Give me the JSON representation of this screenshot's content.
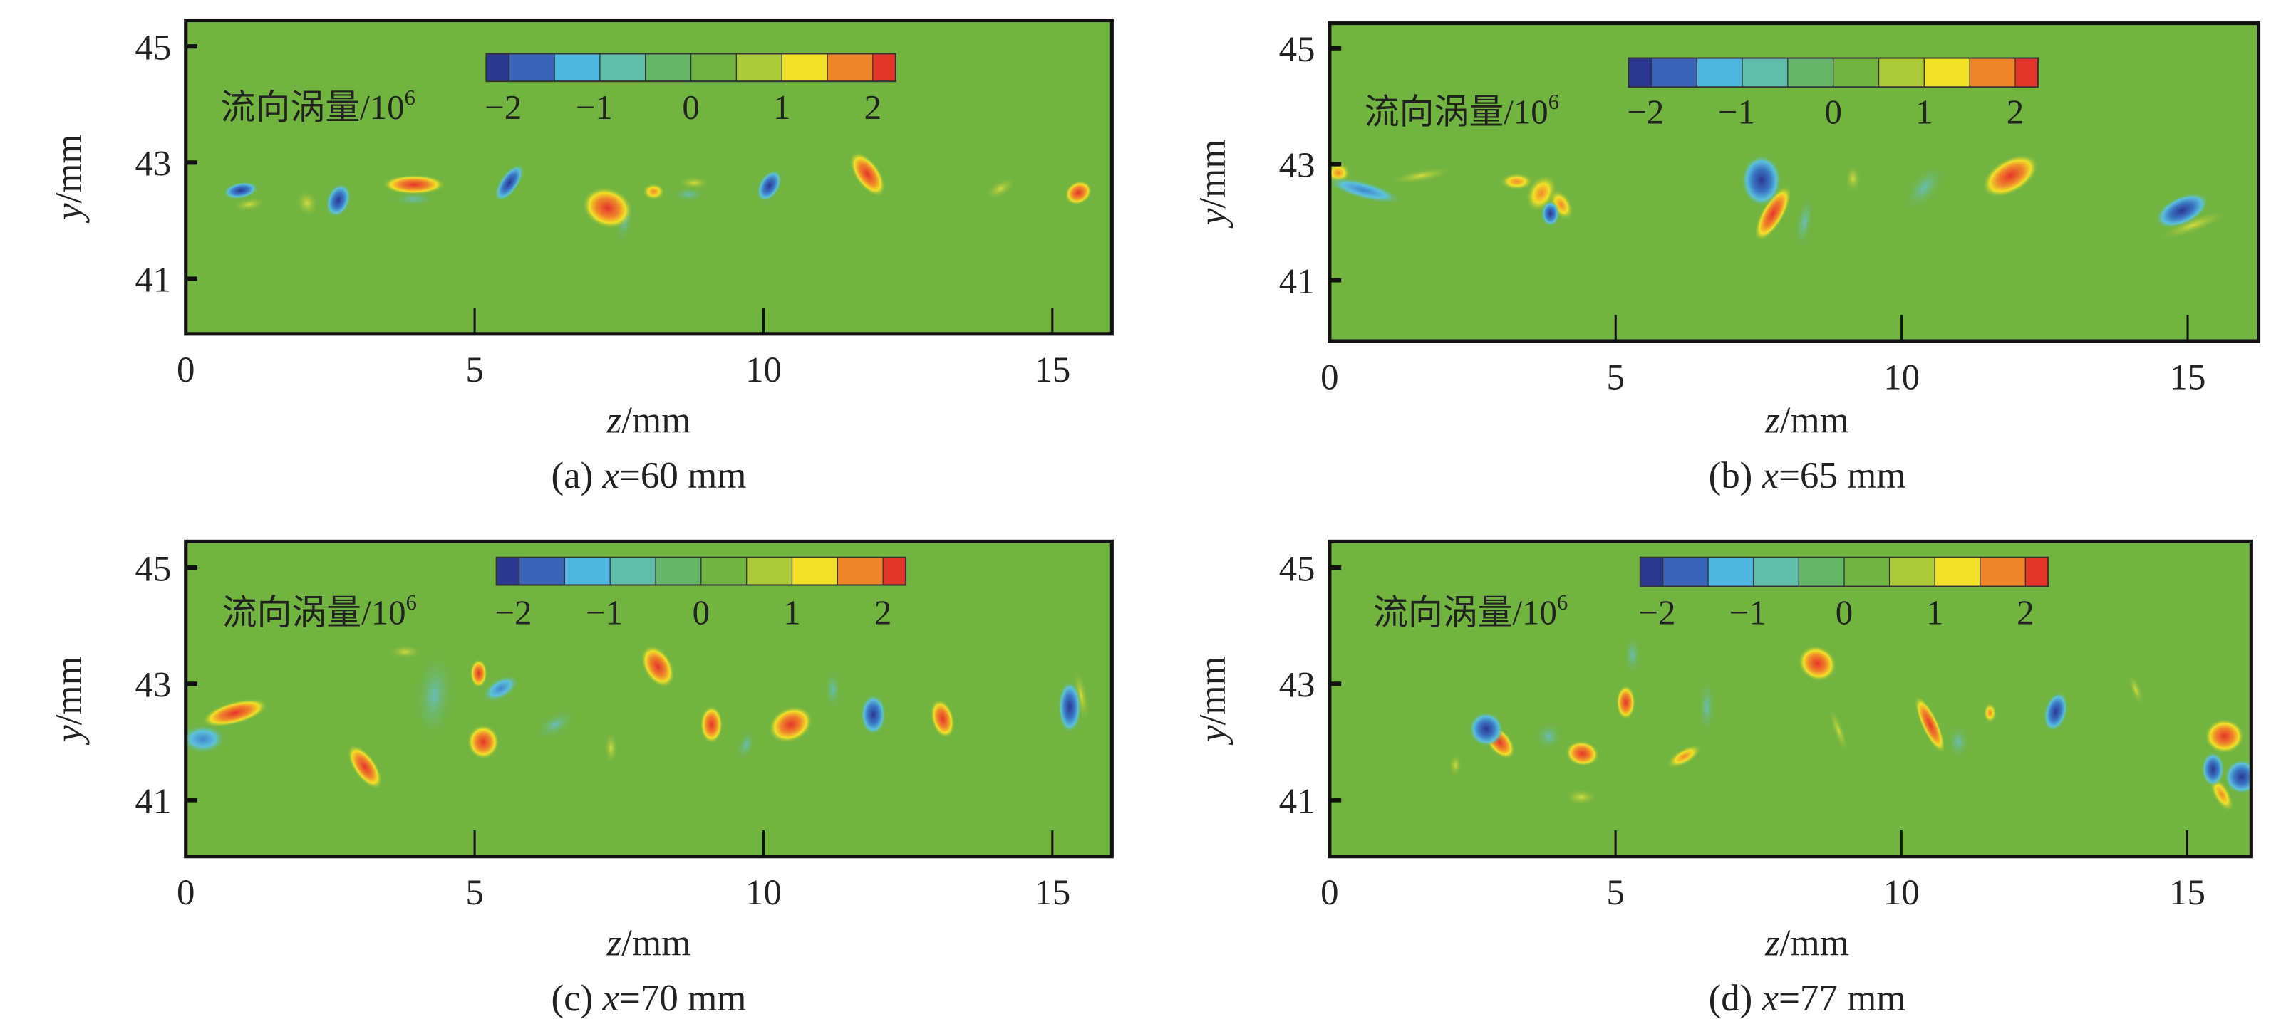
{
  "colorbar": {
    "label": "流向涡量/10",
    "label_exp": "6",
    "ticks": [
      -2,
      -1,
      0,
      1,
      2
    ],
    "tick_labels": [
      "−2",
      "−1",
      "0",
      "1",
      "2"
    ],
    "range": [
      -2.25,
      2.25
    ],
    "levels": [
      -2.25,
      -2,
      -1.5,
      -1,
      -0.5,
      0,
      0.5,
      1,
      1.5,
      2,
      2.25
    ],
    "colors": [
      "#2c3790",
      "#3a64b8",
      "#4fb6e0",
      "#5fbdaa",
      "#66b66a",
      "#72b443",
      "#acc93a",
      "#f2e128",
      "#ef872a",
      "#e4352b"
    ]
  },
  "colors": {
    "background": "#71b440",
    "positive": "#e4352b",
    "negative": "#2c3790"
  },
  "chart_data": [
    {
      "type": "heatmap",
      "title": "(a) x=60 mm",
      "caption_prefix": "(a) ",
      "caption_var": "x",
      "caption_rest": "=60 mm",
      "xlabel_var": "z",
      "xlabel_unit": "/mm",
      "ylabel_var": "y",
      "ylabel_unit": "/mm",
      "xticks": [
        0,
        5,
        10,
        15
      ],
      "yticks": [
        41,
        43,
        45
      ],
      "xlim": [
        0,
        16.03
      ],
      "ylim": [
        40.05,
        45.45
      ],
      "vortices_z_y_value_rz_ry_angle": [
        [
          0.95,
          42.52,
          -1.8,
          0.3,
          0.14,
          -10
        ],
        [
          1.1,
          42.28,
          0.8,
          0.3,
          0.12,
          -10
        ],
        [
          2.1,
          42.3,
          0.8,
          0.25,
          0.2,
          70
        ],
        [
          2.64,
          42.35,
          -2.0,
          0.2,
          0.3,
          20
        ],
        [
          3.95,
          42.62,
          1.9,
          0.55,
          0.17,
          0
        ],
        [
          3.95,
          42.37,
          -0.8,
          0.4,
          0.12,
          0
        ],
        [
          5.6,
          42.65,
          -1.8,
          0.16,
          0.38,
          35
        ],
        [
          7.3,
          42.22,
          2.1,
          0.45,
          0.35,
          20
        ],
        [
          7.6,
          42.0,
          -0.8,
          0.15,
          0.4,
          10
        ],
        [
          8.1,
          42.5,
          1.5,
          0.2,
          0.15,
          0
        ],
        [
          8.7,
          42.45,
          -0.8,
          0.3,
          0.13,
          0
        ],
        [
          8.8,
          42.65,
          0.6,
          0.3,
          0.12,
          0
        ],
        [
          10.1,
          42.6,
          -2.0,
          0.18,
          0.3,
          30
        ],
        [
          11.8,
          42.8,
          2.0,
          0.22,
          0.45,
          -35
        ],
        [
          14.1,
          42.55,
          0.6,
          0.3,
          0.15,
          -30
        ],
        [
          15.45,
          42.48,
          1.6,
          0.25,
          0.2,
          -30
        ]
      ]
    },
    {
      "type": "heatmap",
      "title": "(b) x=65 mm",
      "caption_prefix": "(b) ",
      "caption_var": "x",
      "caption_rest": "=65 mm",
      "xlabel_var": "z",
      "xlabel_unit": "/mm",
      "ylabel_var": "y",
      "ylabel_unit": "/mm",
      "xticks": [
        0,
        5,
        10,
        15
      ],
      "yticks": [
        41,
        43,
        45
      ],
      "xlim": [
        0,
        16.24
      ],
      "ylim": [
        39.95,
        45.43
      ],
      "vortices_z_y_value_rz_ry_angle": [
        [
          0.15,
          42.85,
          1.5,
          0.22,
          0.18,
          0
        ],
        [
          0.6,
          42.55,
          -1.5,
          0.7,
          0.16,
          15
        ],
        [
          1.6,
          42.8,
          0.6,
          0.6,
          0.12,
          -10
        ],
        [
          3.27,
          42.7,
          1.3,
          0.3,
          0.15,
          0
        ],
        [
          3.7,
          42.5,
          1.2,
          0.25,
          0.35,
          30
        ],
        [
          4.05,
          42.3,
          1.2,
          0.18,
          0.3,
          -30
        ],
        [
          3.86,
          42.15,
          -2.0,
          0.16,
          0.22,
          0
        ],
        [
          7.55,
          42.72,
          -2.2,
          0.35,
          0.45,
          0
        ],
        [
          7.75,
          42.15,
          2.1,
          0.2,
          0.55,
          30
        ],
        [
          8.3,
          42.0,
          -0.8,
          0.15,
          0.5,
          10
        ],
        [
          9.15,
          42.75,
          0.8,
          0.15,
          0.25,
          0
        ],
        [
          10.4,
          42.6,
          -0.9,
          0.25,
          0.5,
          40
        ],
        [
          11.9,
          42.8,
          2.0,
          0.55,
          0.3,
          -30
        ],
        [
          14.9,
          42.2,
          -1.6,
          0.5,
          0.25,
          -25
        ],
        [
          15.1,
          41.95,
          0.8,
          0.7,
          0.14,
          -20
        ]
      ]
    },
    {
      "type": "heatmap",
      "title": "(c) x=70 mm",
      "caption_prefix": "(c) ",
      "caption_var": "x",
      "caption_rest": "=70 mm",
      "xlabel_var": "z",
      "xlabel_unit": "/mm",
      "ylabel_var": "y",
      "ylabel_unit": "/mm",
      "xticks": [
        0,
        5,
        10,
        15
      ],
      "yticks": [
        41,
        43,
        45
      ],
      "xlim": [
        0,
        16.03
      ],
      "ylim": [
        40.03,
        45.45
      ],
      "vortices_z_y_value_rz_ry_angle": [
        [
          0.85,
          42.5,
          2.0,
          0.6,
          0.2,
          -15
        ],
        [
          0.3,
          42.05,
          -1.4,
          0.4,
          0.25,
          0
        ],
        [
          3.1,
          41.57,
          2.0,
          0.2,
          0.45,
          -35
        ],
        [
          3.8,
          43.55,
          0.9,
          0.3,
          0.12,
          0
        ],
        [
          4.3,
          42.8,
          -0.8,
          0.35,
          0.8,
          5
        ],
        [
          5.07,
          43.18,
          1.8,
          0.15,
          0.25,
          0
        ],
        [
          5.45,
          42.92,
          -1.5,
          0.35,
          0.18,
          -30
        ],
        [
          5.15,
          42.0,
          2.0,
          0.28,
          0.3,
          0
        ],
        [
          6.4,
          42.3,
          -0.8,
          0.4,
          0.2,
          -30
        ],
        [
          7.36,
          41.9,
          1.0,
          0.12,
          0.3,
          0
        ],
        [
          8.17,
          43.3,
          1.8,
          0.25,
          0.4,
          -30
        ],
        [
          9.1,
          42.3,
          1.8,
          0.2,
          0.33,
          0
        ],
        [
          9.7,
          41.95,
          -0.8,
          0.15,
          0.3,
          20
        ],
        [
          10.47,
          42.3,
          2.0,
          0.4,
          0.3,
          -25
        ],
        [
          11.2,
          42.9,
          -0.8,
          0.15,
          0.35,
          0
        ],
        [
          11.9,
          42.47,
          -1.8,
          0.22,
          0.35,
          0
        ],
        [
          13.1,
          42.4,
          1.9,
          0.2,
          0.35,
          -15
        ],
        [
          15.3,
          42.6,
          -1.8,
          0.2,
          0.45,
          0
        ],
        [
          15.5,
          42.8,
          0.8,
          0.12,
          0.5,
          -10
        ]
      ]
    },
    {
      "type": "heatmap",
      "title": "(d) x=77 mm",
      "caption_prefix": "(d) ",
      "caption_var": "x",
      "caption_rest": "=77 mm",
      "xlabel_var": "z",
      "xlabel_unit": "/mm",
      "ylabel_var": "y",
      "ylabel_unit": "/mm",
      "xticks": [
        0,
        5,
        10,
        15
      ],
      "yticks": [
        41,
        43,
        45
      ],
      "xlim": [
        0,
        16.12
      ],
      "ylim": [
        40.03,
        45.45
      ],
      "vortices_z_y_value_rz_ry_angle": [
        [
          2.74,
          42.22,
          -2.2,
          0.3,
          0.3,
          -30
        ],
        [
          2.97,
          42.0,
          1.8,
          0.2,
          0.35,
          -40
        ],
        [
          2.2,
          41.6,
          0.9,
          0.12,
          0.2,
          0
        ],
        [
          3.83,
          42.1,
          -1.0,
          0.25,
          0.25,
          0
        ],
        [
          4.42,
          41.8,
          1.7,
          0.3,
          0.22,
          10
        ],
        [
          4.4,
          41.05,
          0.9,
          0.3,
          0.15,
          0
        ],
        [
          5.18,
          42.68,
          2.0,
          0.17,
          0.3,
          0
        ],
        [
          5.3,
          43.5,
          -0.9,
          0.15,
          0.35,
          0
        ],
        [
          6.2,
          41.75,
          1.3,
          0.35,
          0.14,
          -30
        ],
        [
          6.6,
          42.6,
          -0.8,
          0.15,
          0.5,
          0
        ],
        [
          8.53,
          43.35,
          1.9,
          0.35,
          0.3,
          30
        ],
        [
          8.9,
          42.2,
          0.7,
          0.1,
          0.45,
          -20
        ],
        [
          10.5,
          42.3,
          1.6,
          0.15,
          0.55,
          -25
        ],
        [
          11.0,
          42.0,
          -0.8,
          0.2,
          0.3,
          0
        ],
        [
          11.55,
          42.5,
          1.2,
          0.12,
          0.18,
          0
        ],
        [
          12.7,
          42.52,
          -1.8,
          0.2,
          0.35,
          15
        ],
        [
          14.1,
          42.9,
          0.9,
          0.1,
          0.3,
          -20
        ],
        [
          15.45,
          41.53,
          -2.0,
          0.2,
          0.3,
          0
        ],
        [
          15.65,
          42.1,
          2.1,
          0.35,
          0.3,
          0
        ],
        [
          15.95,
          41.4,
          -2.0,
          0.3,
          0.3,
          0
        ],
        [
          15.6,
          41.1,
          1.3,
          0.15,
          0.35,
          -30
        ]
      ]
    }
  ]
}
